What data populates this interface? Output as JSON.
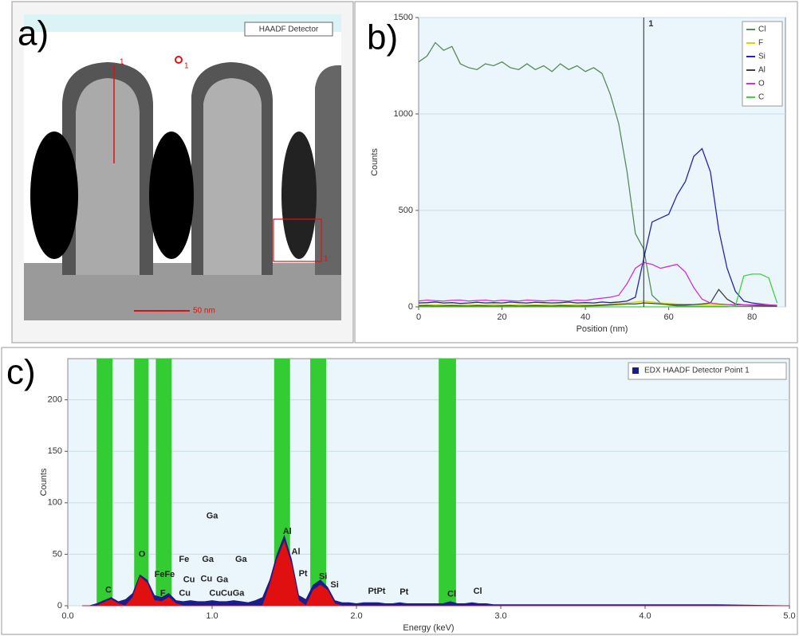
{
  "panel_a": {
    "label": "a)",
    "detector": "HAADF Detector",
    "scale_bar": "50 nm",
    "line_marker": "1",
    "point_marker": "1",
    "box_marker": "1"
  },
  "chart_data": [
    {
      "type": "line",
      "panel_label": "b)",
      "x_label": "Position (nm)",
      "y_label": "Counts",
      "x": [
        0,
        2,
        4,
        6,
        8,
        10,
        12,
        14,
        16,
        18,
        20,
        22,
        24,
        26,
        28,
        30,
        32,
        34,
        36,
        38,
        40,
        42,
        44,
        46,
        48,
        50,
        52,
        54,
        56,
        58,
        60,
        62,
        64,
        66,
        68,
        70,
        72,
        74,
        76,
        78,
        80,
        82,
        84,
        86
      ],
      "series": [
        {
          "name": "Cl",
          "color": "#5a8a5a",
          "values": [
            1270,
            1300,
            1370,
            1330,
            1350,
            1260,
            1240,
            1230,
            1260,
            1250,
            1270,
            1240,
            1230,
            1260,
            1230,
            1250,
            1220,
            1260,
            1230,
            1250,
            1220,
            1240,
            1210,
            1100,
            950,
            700,
            380,
            300,
            60,
            20,
            10,
            5,
            4,
            3,
            3,
            2,
            2,
            2,
            2,
            2,
            2,
            2,
            2,
            2
          ]
        },
        {
          "name": "F",
          "color": "#d8d800",
          "values": [
            10,
            12,
            10,
            11,
            10,
            12,
            10,
            11,
            10,
            12,
            10,
            11,
            10,
            12,
            10,
            11,
            10,
            12,
            10,
            11,
            10,
            12,
            12,
            15,
            18,
            20,
            25,
            30,
            25,
            20,
            18,
            15,
            14,
            12,
            12,
            10,
            10,
            10,
            10,
            10,
            10,
            10,
            10,
            8
          ]
        },
        {
          "name": "Si",
          "color": "#2424b0",
          "values": [
            20,
            22,
            25,
            20,
            22,
            18,
            20,
            24,
            20,
            22,
            20,
            25,
            22,
            20,
            24,
            22,
            20,
            22,
            25,
            20,
            22,
            20,
            25,
            22,
            25,
            30,
            50,
            250,
            440,
            460,
            480,
            580,
            650,
            780,
            820,
            700,
            400,
            200,
            80,
            30,
            20,
            15,
            10,
            5
          ]
        },
        {
          "name": "Al",
          "color": "#404040",
          "values": [
            5,
            6,
            4,
            5,
            6,
            5,
            4,
            6,
            5,
            4,
            5,
            6,
            4,
            5,
            6,
            5,
            4,
            6,
            5,
            4,
            5,
            6,
            8,
            10,
            12,
            15,
            15,
            20,
            18,
            15,
            12,
            10,
            10,
            12,
            15,
            20,
            90,
            40,
            15,
            10,
            8,
            6,
            5,
            4
          ]
        },
        {
          "name": "O",
          "color": "#d030d0",
          "values": [
            30,
            35,
            32,
            30,
            34,
            35,
            30,
            33,
            35,
            30,
            34,
            32,
            30,
            35,
            33,
            30,
            34,
            32,
            30,
            35,
            33,
            40,
            45,
            50,
            60,
            120,
            200,
            230,
            220,
            200,
            210,
            220,
            180,
            100,
            40,
            20,
            15,
            12,
            10,
            10,
            10,
            10,
            10,
            8
          ]
        },
        {
          "name": "C",
          "color": "#40d040",
          "values": [
            0,
            0,
            0,
            0,
            0,
            0,
            0,
            0,
            0,
            0,
            0,
            0,
            0,
            0,
            0,
            0,
            0,
            0,
            0,
            0,
            0,
            0,
            0,
            0,
            0,
            0,
            0,
            0,
            0,
            0,
            0,
            0,
            0,
            0,
            0,
            0,
            0,
            0,
            5,
            160,
            170,
            170,
            150,
            20
          ]
        }
      ],
      "marker": {
        "x": 54,
        "label": "1"
      },
      "xlim": [
        0,
        88
      ],
      "xticks": [
        0,
        20,
        40,
        60,
        80
      ],
      "ylim": [
        0,
        1500
      ],
      "yticks": [
        0,
        500,
        1000,
        1500
      ],
      "grid": true,
      "legend": "top-right"
    },
    {
      "type": "area",
      "panel_label": "c)",
      "x_label": "Energy (keV)",
      "y_label": "Counts",
      "x": [
        0.1,
        0.15,
        0.2,
        0.25,
        0.3,
        0.35,
        0.4,
        0.45,
        0.5,
        0.55,
        0.6,
        0.65,
        0.7,
        0.75,
        0.8,
        0.85,
        0.9,
        0.95,
        1.0,
        1.05,
        1.1,
        1.15,
        1.2,
        1.25,
        1.3,
        1.35,
        1.4,
        1.45,
        1.5,
        1.55,
        1.6,
        1.65,
        1.7,
        1.75,
        1.8,
        1.85,
        1.9,
        1.95,
        2.0,
        2.05,
        2.1,
        2.15,
        2.2,
        2.25,
        2.3,
        2.35,
        2.4,
        2.45,
        2.5,
        2.55,
        2.6,
        2.65,
        2.7,
        2.75,
        2.8,
        2.85,
        2.9,
        2.95,
        3.0,
        3.5,
        4.0,
        4.5,
        5.0
      ],
      "series": [
        {
          "name": "EDX HAADF Detector Point 1",
          "color": "#1c1c8c",
          "values": [
            0,
            0,
            2,
            5,
            8,
            4,
            6,
            12,
            30,
            25,
            10,
            8,
            12,
            5,
            4,
            5,
            4,
            4,
            5,
            4,
            4,
            5,
            4,
            3,
            5,
            8,
            25,
            50,
            68,
            45,
            10,
            6,
            20,
            25,
            18,
            5,
            3,
            3,
            2,
            3,
            3,
            3,
            2,
            2,
            3,
            2,
            2,
            2,
            2,
            2,
            2,
            4,
            2,
            2,
            3,
            2,
            2,
            1,
            1,
            1,
            1,
            1,
            0
          ]
        },
        {
          "color": "#e01010",
          "values": [
            0,
            0,
            0,
            3,
            6,
            2,
            0,
            8,
            28,
            22,
            5,
            4,
            8,
            2,
            0,
            0,
            0,
            0,
            0,
            0,
            0,
            0,
            0,
            0,
            0,
            0,
            20,
            45,
            62,
            40,
            5,
            0,
            15,
            20,
            15,
            2,
            0,
            0,
            0,
            0,
            0,
            0,
            0,
            0,
            0,
            0,
            0,
            0,
            0,
            0,
            0,
            0,
            0,
            0,
            0,
            0,
            0,
            0,
            0,
            0,
            0,
            0,
            0
          ]
        }
      ],
      "bands": [
        [
          0.2,
          0.31
        ],
        [
          0.46,
          0.56
        ],
        [
          0.61,
          0.72
        ],
        [
          1.43,
          1.54
        ],
        [
          1.68,
          1.79
        ],
        [
          2.57,
          2.69
        ]
      ],
      "band_color": "#33cc33",
      "annotations": [
        {
          "text": "C",
          "x": 0.26,
          "y": 15
        },
        {
          "text": "O",
          "x": 0.49,
          "y": 50
        },
        {
          "text": "FeFe",
          "x": 0.6,
          "y": 30
        },
        {
          "text": "F",
          "x": 0.64,
          "y": 12
        },
        {
          "text": "Fe",
          "x": 0.77,
          "y": 45
        },
        {
          "text": "Ga",
          "x": 0.96,
          "y": 87
        },
        {
          "text": "Ga",
          "x": 0.93,
          "y": 45
        },
        {
          "text": "Ga",
          "x": 1.16,
          "y": 45
        },
        {
          "text": "Cu",
          "x": 0.8,
          "y": 25
        },
        {
          "text": "Cu",
          "x": 0.92,
          "y": 26
        },
        {
          "text": "Ga",
          "x": 1.03,
          "y": 25
        },
        {
          "text": "Cu",
          "x": 0.77,
          "y": 12
        },
        {
          "text": "CuCuGa",
          "x": 0.98,
          "y": 12
        },
        {
          "text": "Al",
          "x": 1.49,
          "y": 72
        },
        {
          "text": "Al",
          "x": 1.55,
          "y": 52
        },
        {
          "text": "Pt",
          "x": 1.6,
          "y": 31
        },
        {
          "text": "Si",
          "x": 1.74,
          "y": 28
        },
        {
          "text": "Si",
          "x": 1.82,
          "y": 20
        },
        {
          "text": "PtPt",
          "x": 2.08,
          "y": 14
        },
        {
          "text": "Pt",
          "x": 2.3,
          "y": 13
        },
        {
          "text": "Cl",
          "x": 2.63,
          "y": 11
        },
        {
          "text": "Cl",
          "x": 2.81,
          "y": 14
        }
      ],
      "xlim": [
        0,
        5
      ],
      "xticks": [
        {
          "value": 0,
          "label": "0.0"
        },
        {
          "value": 1,
          "label": "1.0"
        },
        {
          "value": 2,
          "label": "2.0"
        },
        {
          "value": 3,
          "label": "3.0"
        },
        {
          "value": 4,
          "label": "4.0"
        },
        {
          "value": 5,
          "label": "5.0"
        }
      ],
      "ylim": [
        0,
        240
      ],
      "yticks": [
        0,
        50,
        100,
        150,
        200
      ],
      "grid": true,
      "legend": "top-right"
    }
  ]
}
